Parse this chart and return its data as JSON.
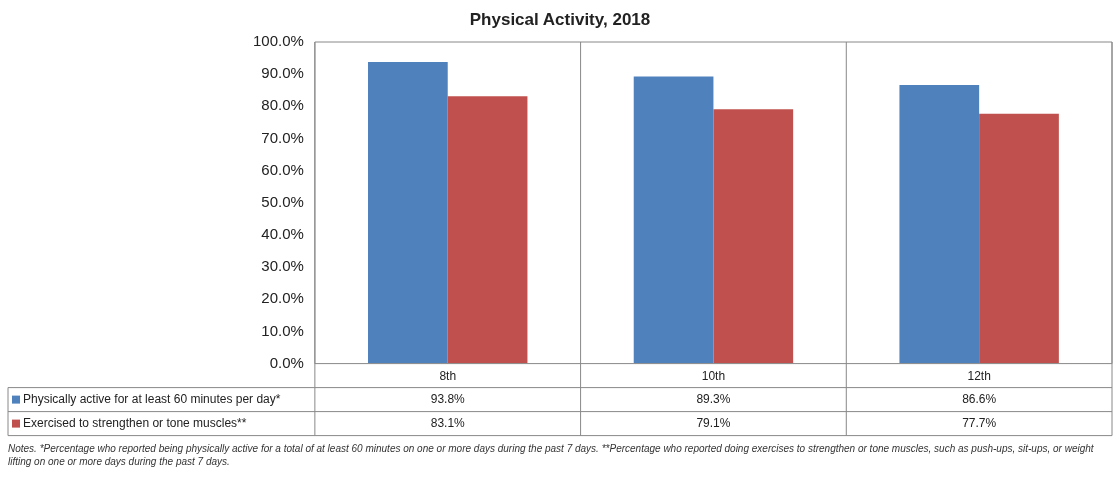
{
  "chart_data": {
    "type": "bar",
    "title": "Physical Activity, 2018",
    "categories": [
      "8th",
      "10th",
      "12th"
    ],
    "series": [
      {
        "name": "Physically active for at least 60 minutes per day*",
        "color": "#4f81bd",
        "values": [
          93.8,
          89.3,
          86.6
        ],
        "value_labels": [
          "93.8%",
          "89.3%",
          "86.6%"
        ]
      },
      {
        "name": "Exercised to strengthen or tone muscles**",
        "color": "#c0504d",
        "values": [
          83.1,
          79.1,
          77.7
        ],
        "value_labels": [
          "83.1%",
          "79.1%",
          "77.7%"
        ]
      }
    ],
    "ylim": [
      0,
      100
    ],
    "yticks": [
      {
        "value": 0,
        "label": "0.0%"
      },
      {
        "value": 10,
        "label": "10.0%"
      },
      {
        "value": 20,
        "label": "20.0%"
      },
      {
        "value": 30,
        "label": "30.0%"
      },
      {
        "value": 40,
        "label": "40.0%"
      },
      {
        "value": 50,
        "label": "50.0%"
      },
      {
        "value": 60,
        "label": "60.0%"
      },
      {
        "value": 70,
        "label": "70.0%"
      },
      {
        "value": 80,
        "label": "80.0%"
      },
      {
        "value": 90,
        "label": "90.0%"
      },
      {
        "value": 100,
        "label": "100.0%"
      }
    ],
    "grid": false,
    "legend": "bottom left",
    "annotations": [
      "Notes. *Percentage who reported being physically active for a total of at least 60 minutes on one or more days during the past 7 days. **Percentage who reported doing exercises to strengthen or tone muscles, such as push-ups, sit-ups, or weight lifting on one or more days during the past 7 days."
    ]
  }
}
